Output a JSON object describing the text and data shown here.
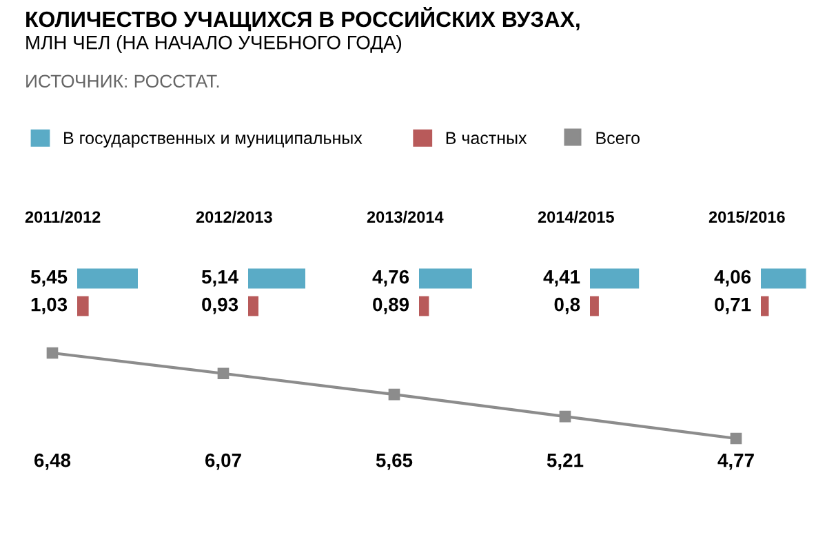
{
  "chart_data": [
    {
      "type": "other",
      "title": "КОЛИЧЕСТВО УЧАЩИХСЯ В РОССИЙСКИХ ВУЗАХ,",
      "subtitle": "МЛН ЧЕЛ (НА НАЧАЛО УЧЕБНОГО ГОДА)",
      "annotations": [
        "ИСТОЧНИК: РОССТАТ."
      ]
    },
    {
      "type": "bar",
      "orientation": "horizontal",
      "title": "2011/2012",
      "categories": [
        null
      ],
      "legend": "top",
      "series": [
        {
          "name": "В государственных и муниципальных",
          "color": "#5aabc6",
          "values": [
            5.45
          ],
          "value_labels": [
            "5,45"
          ]
        },
        {
          "name": "В частных",
          "color": "#b85a5a",
          "values": [
            1.03
          ],
          "value_labels": [
            "1,03"
          ]
        }
      ]
    },
    {
      "type": "bar",
      "orientation": "horizontal",
      "title": "2012/2013",
      "categories": [
        null
      ],
      "series": [
        {
          "color": "#5aabc6",
          "values": [
            5.14
          ],
          "value_labels": [
            "5,14"
          ]
        },
        {
          "color": "#b85a5a",
          "values": [
            0.93
          ],
          "value_labels": [
            "0,93"
          ]
        }
      ]
    },
    {
      "type": "bar",
      "orientation": "horizontal",
      "title": "2013/2014",
      "categories": [
        null
      ],
      "series": [
        {
          "color": "#5aabc6",
          "values": [
            4.76
          ],
          "value_labels": [
            "4,76"
          ]
        },
        {
          "color": "#b85a5a",
          "values": [
            0.89
          ],
          "value_labels": [
            "0,89"
          ]
        }
      ]
    },
    {
      "type": "bar",
      "orientation": "horizontal",
      "title": "2014/2015",
      "categories": [
        null
      ],
      "series": [
        {
          "color": "#5aabc6",
          "values": [
            4.41
          ],
          "value_labels": [
            "4,41"
          ]
        },
        {
          "color": "#b85a5a",
          "values": [
            0.8
          ],
          "value_labels": [
            "0,8"
          ]
        }
      ]
    },
    {
      "type": "bar",
      "orientation": "horizontal",
      "title": "2015/2016",
      "categories": [
        null
      ],
      "series": [
        {
          "color": "#5aabc6",
          "values": [
            4.06
          ],
          "value_labels": [
            "4,06"
          ]
        },
        {
          "color": "#b85a5a",
          "values": [
            0.71
          ],
          "value_labels": [
            "0,71"
          ]
        }
      ]
    },
    {
      "type": "line",
      "categories": [
        null,
        null,
        null,
        null,
        null
      ],
      "marker": "square",
      "line_style": "solid",
      "legend": "top right",
      "series": [
        {
          "name": "Всего",
          "color": "#8c8c8c",
          "values": [
            6.48,
            6.07,
            5.65,
            5.21,
            4.77
          ],
          "value_labels": [
            "6,48",
            "6,07",
            "5,65",
            "5,21",
            "4,77"
          ]
        }
      ]
    }
  ]
}
